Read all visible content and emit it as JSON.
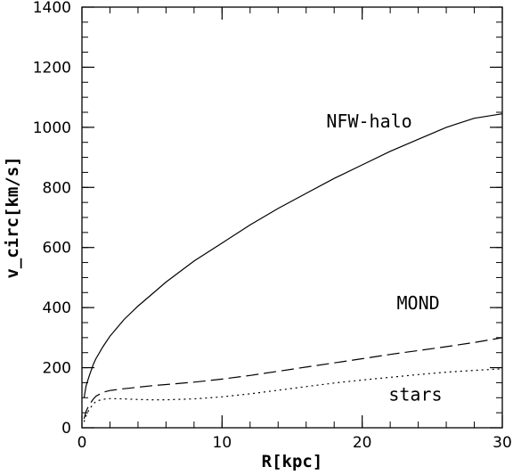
{
  "chart_data": {
    "type": "line",
    "xlabel": "R[kpc]",
    "ylabel": "v_circ[km/s]",
    "xlim": [
      0,
      30
    ],
    "ylim": [
      0,
      1400
    ],
    "x_ticks": [
      "0",
      "10",
      "20",
      "30"
    ],
    "y_ticks": [
      "0",
      "200",
      "400",
      "600",
      "800",
      "1000",
      "1200",
      "1400"
    ],
    "x_tick_values": [
      0,
      10,
      20,
      30
    ],
    "y_tick_values": [
      0,
      200,
      400,
      600,
      800,
      1000,
      1200,
      1400
    ],
    "x_minor_step": 2,
    "y_minor_step": 50,
    "grid": false,
    "series": [
      {
        "name": "NFW-halo",
        "style": "solid",
        "x": [
          0.15,
          0.3,
          0.5,
          0.8,
          1,
          1.5,
          2,
          3,
          4,
          5,
          6,
          8,
          10,
          12,
          14,
          16,
          18,
          20,
          22,
          24,
          26,
          28,
          30
        ],
        "y": [
          100,
          140,
          170,
          210,
          230,
          270,
          305,
          360,
          405,
          445,
          485,
          555,
          615,
          675,
          730,
          780,
          830,
          875,
          920,
          960,
          1000,
          1030,
          1045
        ]
      },
      {
        "name": "MOND",
        "style": "dashed",
        "x": [
          0.15,
          0.3,
          0.5,
          0.8,
          1,
          1.5,
          2,
          3,
          4,
          5,
          6,
          8,
          10,
          12,
          14,
          16,
          18,
          20,
          22,
          24,
          26,
          28,
          30
        ],
        "y": [
          30,
          55,
          75,
          95,
          105,
          118,
          124,
          130,
          135,
          140,
          144,
          152,
          162,
          174,
          188,
          202,
          216,
          230,
          244,
          257,
          270,
          284,
          300
        ]
      },
      {
        "name": "stars",
        "style": "dotted",
        "x": [
          0.15,
          0.3,
          0.5,
          0.8,
          1,
          1.5,
          2,
          3,
          4,
          5,
          6,
          8,
          10,
          12,
          14,
          16,
          18,
          20,
          22,
          24,
          26,
          28,
          30
        ],
        "y": [
          20,
          40,
          60,
          78,
          88,
          95,
          97,
          96,
          94,
          93,
          93,
          96,
          103,
          113,
          125,
          137,
          149,
          159,
          168,
          177,
          185,
          191,
          196
        ]
      }
    ],
    "annotations": [
      {
        "text": "NFW-halo",
        "x": 20.5,
        "y": 1000
      },
      {
        "text": "MOND",
        "x": 24,
        "y": 395
      },
      {
        "text": "stars",
        "x": 23.8,
        "y": 90
      }
    ]
  }
}
